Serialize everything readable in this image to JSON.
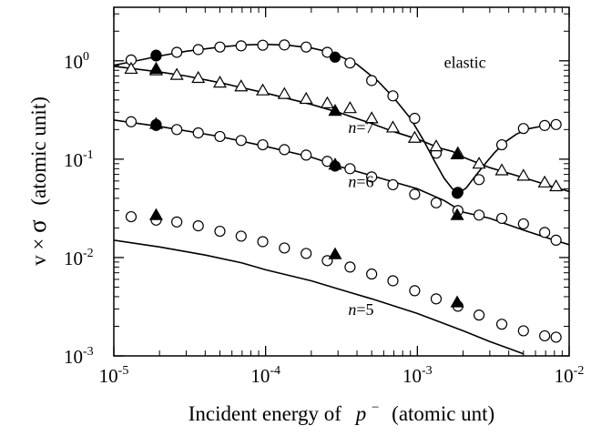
{
  "chart_data": {
    "type": "line",
    "title": "",
    "xscale": "log",
    "yscale": "log",
    "xlim": [
      1e-05,
      0.01
    ],
    "ylim": [
      0.001,
      3.5
    ],
    "grid": false,
    "xlabel": {
      "prefix": "Incident energy of",
      "symbol": "p",
      "superscript": "−",
      "suffix": "(atomic unt)"
    },
    "ylabel": {
      "prefix": "v × ",
      "symbol": "σ",
      "suffix": "(atomic unit)"
    },
    "xticks": [
      {
        "value": 1e-05,
        "base": "10",
        "exp": "-5"
      },
      {
        "value": 0.0001,
        "base": "10",
        "exp": "-4"
      },
      {
        "value": 0.001,
        "base": "10",
        "exp": "-3"
      },
      {
        "value": 0.01,
        "base": "10",
        "exp": "-2"
      }
    ],
    "yticks": [
      {
        "value": 0.001,
        "base": "10",
        "exp": "-3"
      },
      {
        "value": 0.01,
        "base": "10",
        "exp": "-2"
      },
      {
        "value": 0.1,
        "base": "10",
        "exp": "-1"
      },
      {
        "value": 1,
        "base": "10",
        "exp": "0"
      }
    ],
    "annotations": [
      {
        "id": "elastic",
        "text": "elastic",
        "italic_n": false,
        "x": 0.0015,
        "y": 0.85
      },
      {
        "id": "n7",
        "text": "n=7",
        "italic_n": true,
        "x": 0.00035,
        "y": 0.185
      },
      {
        "id": "n6",
        "text": "n=6",
        "italic_n": true,
        "x": 0.00035,
        "y": 0.052
      },
      {
        "id": "n5",
        "text": "n=5",
        "italic_n": true,
        "x": 0.00035,
        "y": 0.0026
      }
    ],
    "series": [
      {
        "id": "elastic-curve",
        "kind": "line",
        "points": [
          [
            1e-05,
            0.9
          ],
          [
            1.5e-05,
            1.02
          ],
          [
            2e-05,
            1.12
          ],
          [
            3e-05,
            1.25
          ],
          [
            5e-05,
            1.38
          ],
          [
            7e-05,
            1.45
          ],
          [
            0.0001,
            1.47
          ],
          [
            0.00014,
            1.44
          ],
          [
            0.0002,
            1.35
          ],
          [
            0.00028,
            1.2
          ],
          [
            0.0004,
            0.92
          ],
          [
            0.00055,
            0.62
          ],
          [
            0.0007,
            0.42
          ],
          [
            0.0009,
            0.26
          ],
          [
            0.0011,
            0.155
          ],
          [
            0.0013,
            0.095
          ],
          [
            0.0015,
            0.064
          ],
          [
            0.0017,
            0.05
          ],
          [
            0.0019,
            0.046
          ],
          [
            0.0021,
            0.051
          ],
          [
            0.0024,
            0.067
          ],
          [
            0.0028,
            0.09
          ],
          [
            0.0032,
            0.115
          ],
          [
            0.0038,
            0.15
          ],
          [
            0.0045,
            0.18
          ],
          [
            0.0055,
            0.205
          ],
          [
            0.0065,
            0.215
          ],
          [
            0.008,
            0.225
          ]
        ]
      },
      {
        "id": "n7-curve",
        "kind": "line",
        "points": [
          [
            1e-05,
            0.88
          ],
          [
            2e-05,
            0.77
          ],
          [
            3e-05,
            0.7
          ],
          [
            5e-05,
            0.6
          ],
          [
            0.0001,
            0.47
          ],
          [
            0.0002,
            0.36
          ],
          [
            0.0003,
            0.3
          ],
          [
            0.0005,
            0.23
          ],
          [
            0.0007,
            0.19
          ],
          [
            0.001,
            0.16
          ],
          [
            0.0014,
            0.13
          ],
          [
            0.0017,
            0.12
          ],
          [
            0.002,
            0.105
          ],
          [
            0.003,
            0.082
          ],
          [
            0.005,
            0.065
          ],
          [
            0.008,
            0.052
          ],
          [
            0.01,
            0.047
          ]
        ]
      },
      {
        "id": "n6-curve",
        "kind": "line",
        "points": [
          [
            1e-05,
            0.25
          ],
          [
            2e-05,
            0.215
          ],
          [
            5e-05,
            0.17
          ],
          [
            0.0001,
            0.135
          ],
          [
            0.0002,
            0.105
          ],
          [
            0.0003,
            0.085
          ],
          [
            0.0005,
            0.068
          ],
          [
            0.001,
            0.05
          ],
          [
            0.0015,
            0.038
          ],
          [
            0.002,
            0.029
          ],
          [
            0.003,
            0.025
          ],
          [
            0.005,
            0.019
          ],
          [
            0.008,
            0.015
          ],
          [
            0.01,
            0.0135
          ]
        ]
      },
      {
        "id": "n5-curve",
        "kind": "line",
        "points": [
          [
            1e-05,
            0.015
          ],
          [
            2e-05,
            0.0128
          ],
          [
            4e-05,
            0.0106
          ],
          [
            7e-05,
            0.0088
          ],
          [
            0.0001,
            0.0075
          ],
          [
            0.0002,
            0.0058
          ],
          [
            0.0003,
            0.0048
          ],
          [
            0.0005,
            0.0038
          ],
          [
            0.001,
            0.0027
          ],
          [
            0.002,
            0.0018
          ],
          [
            0.003,
            0.0014
          ],
          [
            0.005,
            0.00105
          ]
        ]
      },
      {
        "id": "elastic-open-circles",
        "kind": "open-circle",
        "points": [
          [
            1.3e-05,
            1.02
          ],
          [
            1.9e-05,
            1.12
          ],
          [
            2.6e-05,
            1.22
          ],
          [
            3.6e-05,
            1.3
          ],
          [
            5e-05,
            1.38
          ],
          [
            6.9e-05,
            1.42
          ],
          [
            9.58e-05,
            1.44
          ],
          [
            0.000133,
            1.45
          ],
          [
            0.000185,
            1.38
          ],
          [
            0.000255,
            1.22
          ],
          [
            0.00036,
            0.95
          ],
          [
            0.0005,
            0.63
          ],
          [
            0.00069,
            0.44
          ],
          [
            0.00096,
            0.26
          ],
          [
            0.00133,
            0.115
          ],
          [
            0.00185,
            0.046
          ],
          [
            0.00255,
            0.062
          ],
          [
            0.0036,
            0.14
          ],
          [
            0.005,
            0.205
          ],
          [
            0.0069,
            0.22
          ],
          [
            0.0082,
            0.225
          ]
        ]
      },
      {
        "id": "elastic-filled-circles",
        "kind": "filled-circle",
        "points": [
          [
            1.9e-05,
            1.14
          ],
          [
            0.000287,
            1.09
          ],
          [
            0.00183,
            0.045
          ]
        ]
      },
      {
        "id": "n7-open-triangles",
        "kind": "open-triangle",
        "points": [
          [
            1.3e-05,
            0.83
          ],
          [
            1.9e-05,
            0.8
          ],
          [
            2.6e-05,
            0.72
          ],
          [
            3.6e-05,
            0.67
          ],
          [
            5e-05,
            0.6
          ],
          [
            6.9e-05,
            0.55
          ],
          [
            9.58e-05,
            0.5
          ],
          [
            0.000133,
            0.46
          ],
          [
            0.000185,
            0.41
          ],
          [
            0.000255,
            0.37
          ],
          [
            0.00036,
            0.33
          ],
          [
            0.0005,
            0.26
          ],
          [
            0.00069,
            0.21
          ],
          [
            0.00096,
            0.165
          ],
          [
            0.00133,
            0.135
          ],
          [
            0.00185,
            0.115
          ],
          [
            0.00255,
            0.09
          ],
          [
            0.0036,
            0.077
          ],
          [
            0.005,
            0.068
          ],
          [
            0.0069,
            0.058
          ],
          [
            0.0082,
            0.053
          ]
        ]
      },
      {
        "id": "n7-filled-triangles",
        "kind": "filled-triangle",
        "points": [
          [
            1.9e-05,
            0.83
          ],
          [
            0.000287,
            0.31
          ],
          [
            0.00183,
            0.112
          ]
        ]
      },
      {
        "id": "n6-open-circles",
        "kind": "open-circle",
        "points": [
          [
            1.3e-05,
            0.24
          ],
          [
            1.9e-05,
            0.22
          ],
          [
            2.6e-05,
            0.2
          ],
          [
            3.6e-05,
            0.185
          ],
          [
            5e-05,
            0.17
          ],
          [
            6.9e-05,
            0.155
          ],
          [
            9.58e-05,
            0.14
          ],
          [
            0.000133,
            0.125
          ],
          [
            0.000185,
            0.11
          ],
          [
            0.000255,
            0.095
          ],
          [
            0.00036,
            0.08
          ],
          [
            0.0005,
            0.066
          ],
          [
            0.00069,
            0.055
          ],
          [
            0.00096,
            0.044
          ],
          [
            0.00133,
            0.036
          ],
          [
            0.00185,
            0.03
          ],
          [
            0.00255,
            0.027
          ],
          [
            0.0036,
            0.025
          ],
          [
            0.005,
            0.022
          ],
          [
            0.0069,
            0.018
          ],
          [
            0.0082,
            0.015
          ]
        ]
      },
      {
        "id": "n6-filled-markers",
        "kind": "filled-circle",
        "points": [
          [
            1.9e-05,
            0.225
          ],
          [
            0.000287,
            0.085
          ]
        ]
      },
      {
        "id": "n6-filled-triangles",
        "kind": "filled-triangle",
        "points": [
          [
            1.9e-05,
            0.228
          ],
          [
            0.000287,
            0.088
          ],
          [
            0.00183,
            0.027
          ]
        ]
      },
      {
        "id": "n5-open-circles",
        "kind": "open-circle",
        "points": [
          [
            1.3e-05,
            0.026
          ],
          [
            1.9e-05,
            0.024
          ],
          [
            2.6e-05,
            0.023
          ],
          [
            3.6e-05,
            0.021
          ],
          [
            5e-05,
            0.0185
          ],
          [
            6.9e-05,
            0.0165
          ],
          [
            9.58e-05,
            0.0145
          ],
          [
            0.000133,
            0.0125
          ],
          [
            0.000185,
            0.011
          ],
          [
            0.000255,
            0.0093
          ],
          [
            0.00036,
            0.008
          ],
          [
            0.0005,
            0.0068
          ],
          [
            0.00069,
            0.0058
          ],
          [
            0.00096,
            0.0046
          ],
          [
            0.00133,
            0.0038
          ],
          [
            0.00185,
            0.0032
          ],
          [
            0.00255,
            0.0026
          ],
          [
            0.0036,
            0.0021
          ],
          [
            0.005,
            0.0018
          ],
          [
            0.0069,
            0.0016
          ],
          [
            0.0082,
            0.00155
          ]
        ]
      },
      {
        "id": "n5-filled-triangles",
        "kind": "filled-triangle",
        "points": [
          [
            1.9e-05,
            0.027
          ],
          [
            0.000287,
            0.0108
          ],
          [
            0.00183,
            0.0035
          ]
        ]
      }
    ]
  }
}
